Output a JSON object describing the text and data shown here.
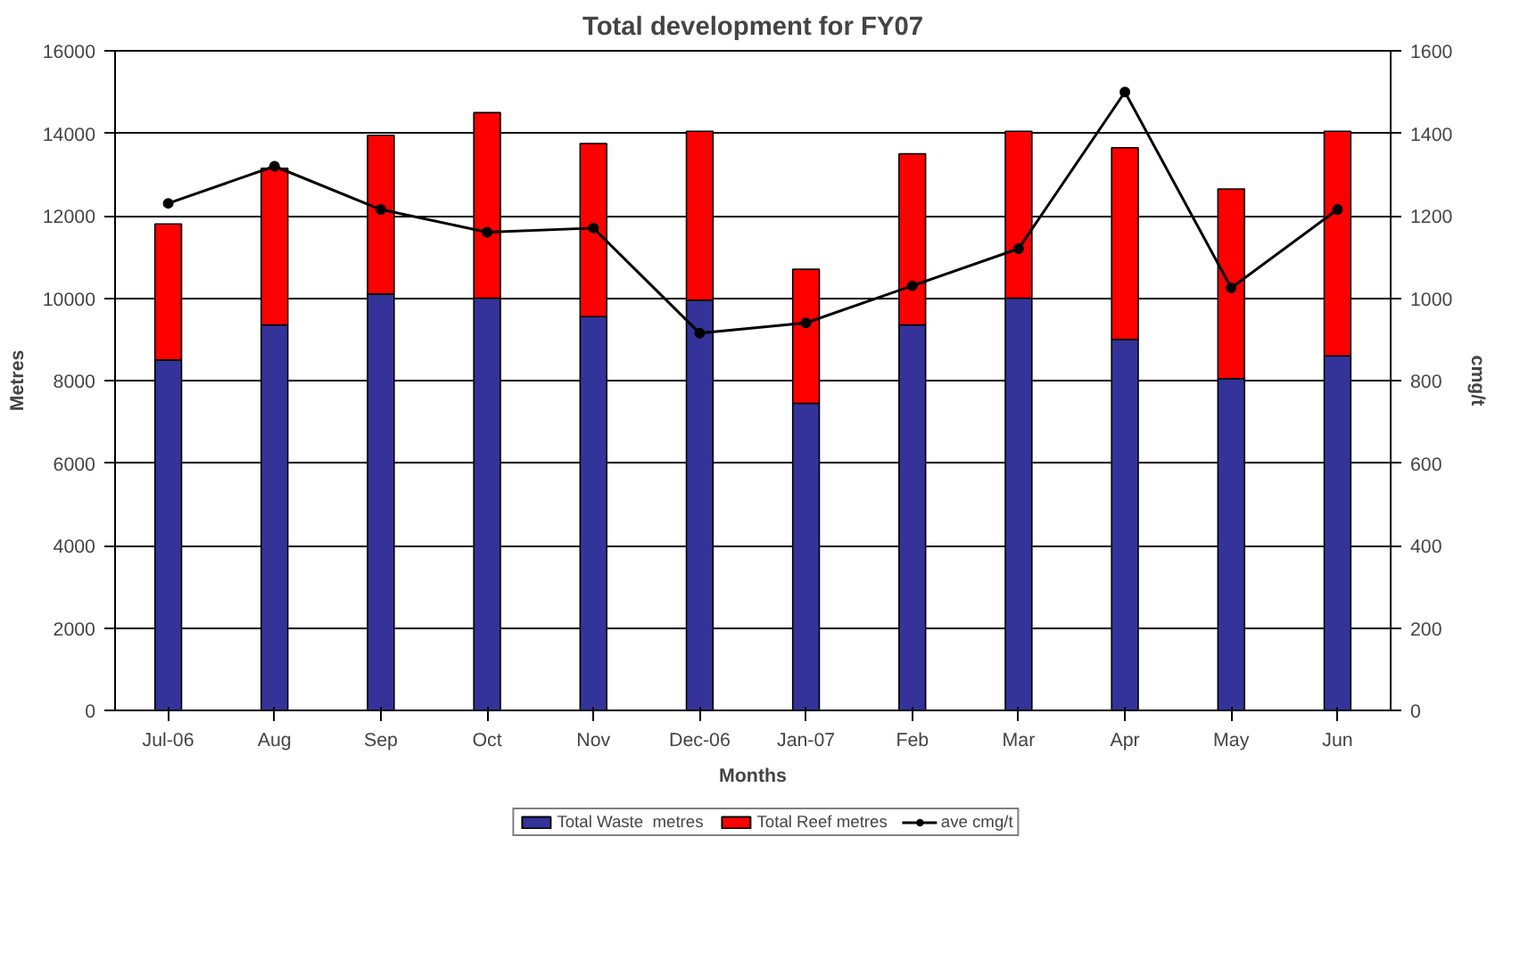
{
  "chart_data": {
    "type": "bar",
    "title": "Total development for FY07",
    "xlabel": "Months",
    "ylabel": "Metres",
    "y2label": "cmg/t",
    "categories": [
      "Jul-06",
      "Aug",
      "Sep",
      "Oct",
      "Nov",
      "Dec-06",
      "Jan-07",
      "Feb",
      "Mar",
      "Apr",
      "May",
      "Jun"
    ],
    "stacked": true,
    "series": [
      {
        "name": "Total Waste  metres",
        "color": "#333399",
        "values": [
          8500,
          9350,
          10100,
          10000,
          9550,
          9950,
          7450,
          9350,
          10000,
          9000,
          8050,
          8600
        ]
      },
      {
        "name": "Total Reef metres",
        "color": "#ff0000",
        "values": [
          3300,
          3800,
          3850,
          4500,
          4200,
          4100,
          3250,
          4150,
          4050,
          4650,
          4600,
          5450
        ]
      },
      {
        "name": "ave cmg/t",
        "type": "line",
        "axis": "y2",
        "marker": "circle",
        "color": "#000000",
        "values": [
          1230,
          1320,
          1215,
          1160,
          1170,
          915,
          940,
          1030,
          1120,
          1500,
          1025,
          1215
        ]
      }
    ],
    "ylim": [
      0,
      16000
    ],
    "yticks": [
      0,
      2000,
      4000,
      6000,
      8000,
      10000,
      12000,
      14000,
      16000
    ],
    "y2lim": [
      0,
      1600
    ],
    "y2ticks": [
      0,
      200,
      400,
      600,
      800,
      1000,
      1200,
      1400,
      1600
    ],
    "grid": "y",
    "legend": "bottom"
  }
}
